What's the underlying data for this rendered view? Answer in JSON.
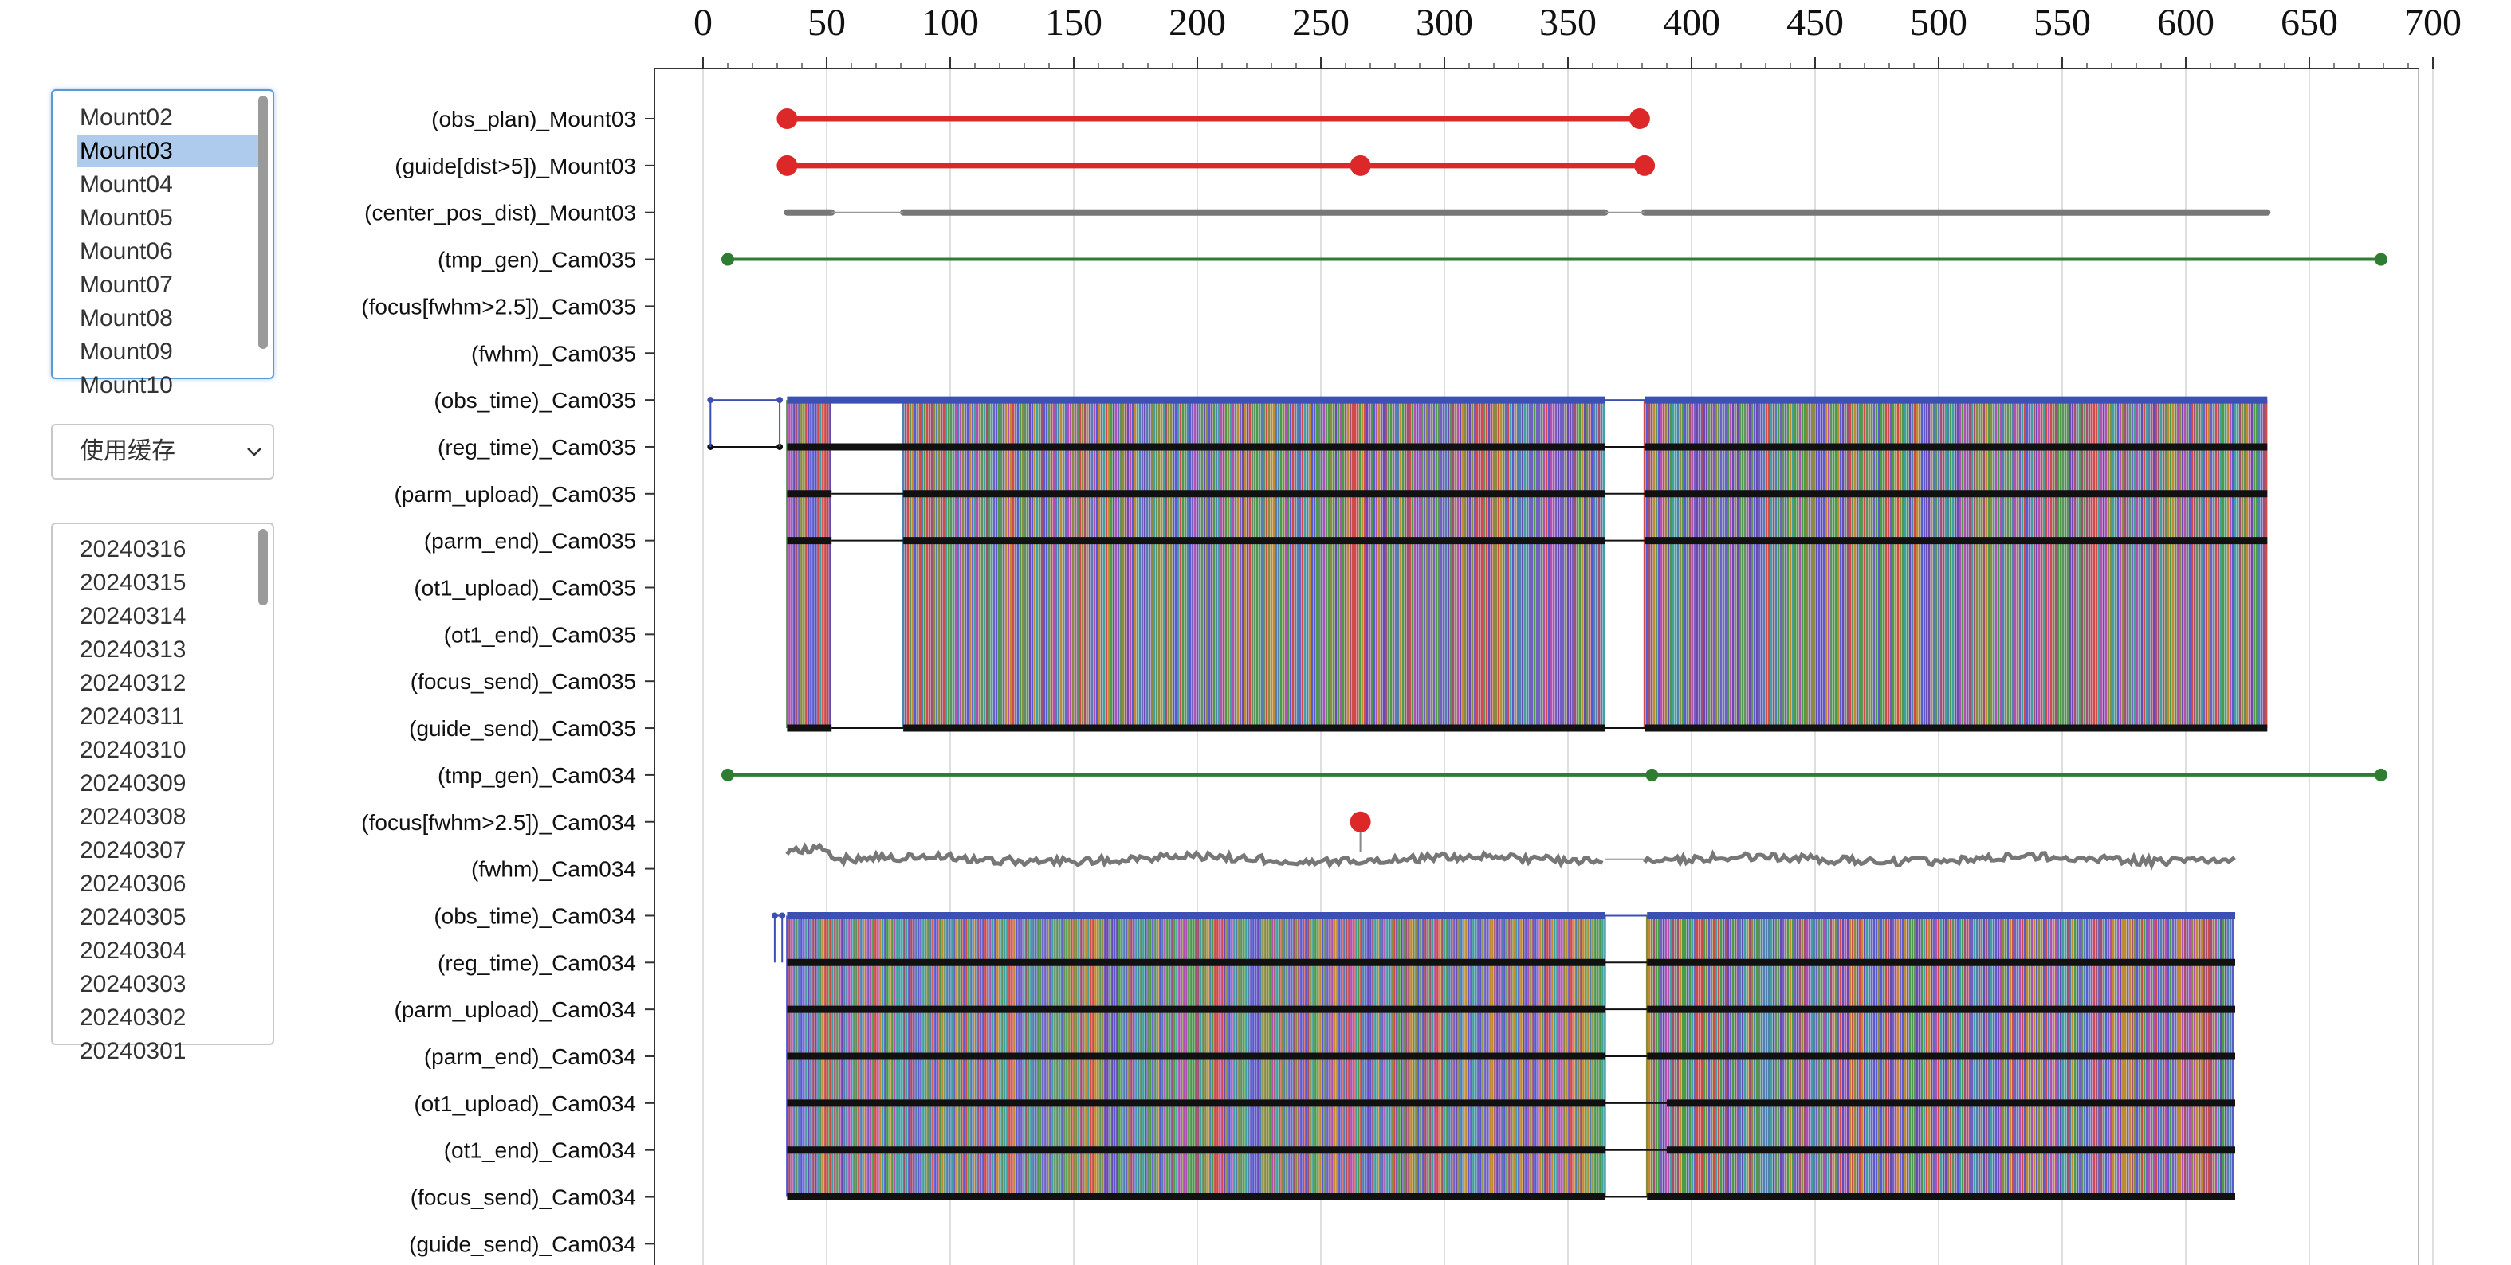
{
  "mount_list": {
    "items": [
      "Mount02",
      "Mount03",
      "Mount04",
      "Mount05",
      "Mount06",
      "Mount07",
      "Mount08",
      "Mount09",
      "Mount10"
    ],
    "selected": "Mount03"
  },
  "cache_select": {
    "label": "使用缓存",
    "icon": "chevron-down-icon"
  },
  "date_list": {
    "items": [
      "20240316",
      "20240315",
      "20240314",
      "20240313",
      "20240312",
      "20240311",
      "20240310",
      "20240309",
      "20240308",
      "20240307",
      "20240306",
      "20240305",
      "20240304",
      "20240303",
      "20240302",
      "20240301"
    ]
  },
  "chart_data": {
    "type": "timeline",
    "x_ticks": [
      "0",
      "50",
      "100",
      "150",
      "200",
      "250",
      "300",
      "350",
      "400",
      "450",
      "500",
      "550",
      "600",
      "650",
      "700"
    ],
    "xlim": [
      0,
      700
    ],
    "grid": true,
    "rows": [
      {
        "label": "(obs_plan)_Mount03",
        "kind": "segment",
        "color": "#dc2828",
        "points": [
          34,
          379
        ]
      },
      {
        "label": "(guide[dist>5])_Mount03",
        "kind": "segment",
        "color": "#dc2828",
        "points": [
          34,
          266,
          381
        ]
      },
      {
        "label": "(center_pos_dist)_Mount03",
        "kind": "gray",
        "segments": [
          [
            34,
            52
          ],
          [
            81,
            365
          ],
          [
            381,
            633
          ]
        ],
        "gaps": [
          [
            52,
            81
          ],
          [
            365,
            381
          ]
        ]
      },
      {
        "label": "(tmp_gen)_Cam035",
        "kind": "segment",
        "color": "#2e7d32",
        "points": [
          10,
          679
        ]
      },
      {
        "label": "(focus[fwhm>2.5])_Cam035",
        "kind": "empty"
      },
      {
        "label": "(fwhm)_Cam035",
        "kind": "empty"
      },
      {
        "label": "(obs_time)_Cam035",
        "kind": "blue",
        "segments": [
          [
            34,
            365
          ],
          [
            381,
            633
          ]
        ],
        "lead": [
          3,
          31
        ]
      },
      {
        "label": "(reg_time)_Cam035",
        "kind": "black",
        "segments": [
          [
            34,
            365
          ],
          [
            381,
            633
          ]
        ],
        "lead": [
          3,
          31
        ]
      },
      {
        "label": "(parm_upload)_Cam035",
        "kind": "black",
        "segments": [
          [
            34,
            52
          ],
          [
            81,
            365
          ],
          [
            381,
            633
          ]
        ]
      },
      {
        "label": "(parm_end)_Cam035",
        "kind": "black",
        "segments": [
          [
            34,
            52
          ],
          [
            81,
            365
          ],
          [
            381,
            633
          ]
        ]
      },
      {
        "label": "(ot1_upload)_Cam035",
        "kind": "empty"
      },
      {
        "label": "(ot1_end)_Cam035",
        "kind": "empty"
      },
      {
        "label": "(focus_send)_Cam035",
        "kind": "empty"
      },
      {
        "label": "(guide_send)_Cam035",
        "kind": "black",
        "segments": [
          [
            34,
            52
          ],
          [
            81,
            365
          ],
          [
            381,
            633
          ]
        ]
      },
      {
        "label": "(tmp_gen)_Cam034",
        "kind": "segment",
        "color": "#2e7d32",
        "points": [
          10,
          384,
          679
        ]
      },
      {
        "label": "(focus[fwhm>2.5])_Cam034",
        "kind": "event",
        "color": "#dc2828",
        "points": [
          266
        ]
      },
      {
        "label": "(fwhm)_Cam034",
        "kind": "wave",
        "segments": [
          [
            34,
            365
          ],
          [
            381,
            620
          ]
        ]
      },
      {
        "label": "(obs_time)_Cam034",
        "kind": "blue",
        "segments": [
          [
            34,
            365
          ],
          [
            382,
            620
          ]
        ],
        "lead": [
          29,
          32
        ]
      },
      {
        "label": "(reg_time)_Cam034",
        "kind": "black",
        "segments": [
          [
            34,
            365
          ],
          [
            382,
            620
          ]
        ]
      },
      {
        "label": "(parm_upload)_Cam034",
        "kind": "black",
        "segments": [
          [
            34,
            365
          ],
          [
            382,
            620
          ]
        ]
      },
      {
        "label": "(parm_end)_Cam034",
        "kind": "black",
        "segments": [
          [
            34,
            365
          ],
          [
            382,
            620
          ]
        ]
      },
      {
        "label": "(ot1_upload)_Cam034",
        "kind": "black",
        "segments": [
          [
            34,
            365
          ],
          [
            390,
            620
          ]
        ]
      },
      {
        "label": "(ot1_end)_Cam034",
        "kind": "black",
        "segments": [
          [
            34,
            365
          ],
          [
            390,
            620
          ]
        ]
      },
      {
        "label": "(focus_send)_Cam034",
        "kind": "black",
        "segments": [
          [
            34,
            365
          ],
          [
            382,
            620
          ]
        ]
      },
      {
        "label": "(guide_send)_Cam034",
        "kind": "empty"
      }
    ],
    "bands": [
      {
        "from_row": "(obs_time)_Cam035",
        "to_row": "(guide_send)_Cam035",
        "segments": [
          [
            34,
            52
          ],
          [
            81,
            365
          ],
          [
            381,
            633
          ]
        ]
      },
      {
        "from_row": "(obs_time)_Cam034",
        "to_row": "(focus_send)_Cam034",
        "segments": [
          [
            34,
            365
          ],
          [
            382,
            620
          ]
        ]
      }
    ]
  }
}
